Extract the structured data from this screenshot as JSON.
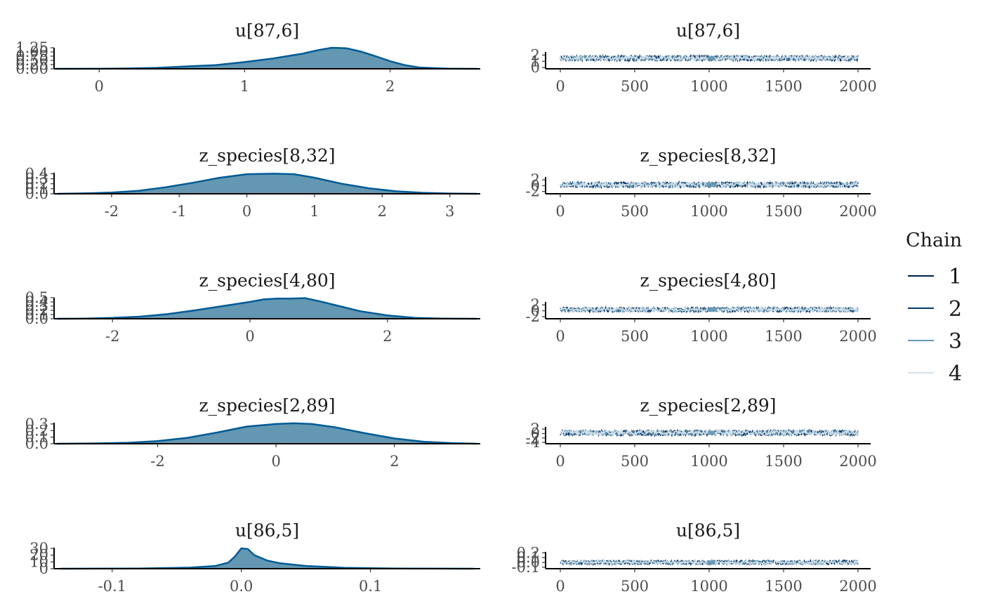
{
  "chart_data": [
    {
      "type": "area",
      "title": "u[87,6]",
      "parameter": "u[87,6]",
      "x": [
        -0.3,
        0.0,
        0.2,
        0.4,
        0.6,
        0.8,
        1.0,
        1.2,
        1.4,
        1.5,
        1.6,
        1.7,
        1.8,
        1.9,
        2.0,
        2.1,
        2.2,
        2.4,
        2.6
      ],
      "y": [
        0.0,
        0.005,
        0.02,
        0.06,
        0.14,
        0.22,
        0.4,
        0.62,
        0.9,
        1.1,
        1.25,
        1.22,
        1.02,
        0.75,
        0.45,
        0.22,
        0.08,
        0.01,
        0.0
      ],
      "xlim": [
        -0.31,
        2.62
      ],
      "ylim": [
        0,
        1.25
      ],
      "xticks": [
        0,
        1,
        2
      ],
      "xtick_labels": [
        "0",
        "1",
        "2"
      ],
      "yticks": [
        0,
        0.25,
        0.5,
        0.75,
        1.0,
        1.25
      ],
      "ytick_labels": [
        "0.00",
        "0.25",
        "0.50",
        "0.75",
        "1.00",
        "1.25"
      ],
      "fill_color": "#6497b1",
      "line_color": "#005b96"
    },
    {
      "type": "line",
      "title": "u[87,6]",
      "parameter": "u[87,6]",
      "iterations": [
        0,
        2000
      ],
      "trace_center": 1.5,
      "trace_spread": 0.45,
      "trace_highlight": [
        990,
        1040
      ],
      "xlim": [
        -80,
        2090
      ],
      "ylim": [
        -0.2,
        2.5
      ],
      "xticks": [
        0,
        500,
        1000,
        1500,
        2000
      ],
      "xtick_labels": [
        "0",
        "500",
        "1000",
        "1500",
        "2000"
      ],
      "yticks": [
        0,
        1,
        2
      ],
      "ytick_labels": [
        "0",
        "1",
        "2"
      ]
    },
    {
      "type": "area",
      "title": "z_species[8,32]",
      "parameter": "z_species[8,32]",
      "x": [
        -2.8,
        -2.4,
        -2.0,
        -1.6,
        -1.2,
        -0.8,
        -0.4,
        0.0,
        0.4,
        0.7,
        1.0,
        1.4,
        1.8,
        2.2,
        2.6,
        3.0,
        3.4
      ],
      "y": [
        0.0,
        0.008,
        0.025,
        0.06,
        0.13,
        0.22,
        0.32,
        0.39,
        0.4,
        0.39,
        0.32,
        0.2,
        0.11,
        0.05,
        0.02,
        0.005,
        0.0
      ],
      "xlim": [
        -2.85,
        3.45
      ],
      "ylim": [
        0,
        0.42
      ],
      "xticks": [
        -2,
        -1,
        0,
        1,
        2,
        3
      ],
      "xtick_labels": [
        "-2",
        "-1",
        "0",
        "1",
        "2",
        "3"
      ],
      "yticks": [
        0,
        0.1,
        0.2,
        0.3,
        0.4
      ],
      "ytick_labels": [
        "0.0",
        "0.1",
        "0.2",
        "0.3",
        "0.4"
      ],
      "fill_color": "#6497b1",
      "line_color": "#005b96"
    },
    {
      "type": "line",
      "title": "z_species[8,32]",
      "parameter": "z_species[8,32]",
      "iterations": [
        0,
        2000
      ],
      "trace_center": 0.3,
      "trace_spread": 1.0,
      "trace_highlight": [
        980,
        1050
      ],
      "xlim": [
        -80,
        2090
      ],
      "ylim": [
        -2.8,
        3.0
      ],
      "xticks": [
        0,
        500,
        1000,
        1500,
        2000
      ],
      "xtick_labels": [
        "0",
        "500",
        "1000",
        "1500",
        "2000"
      ],
      "yticks": [
        -2,
        0,
        2
      ],
      "ytick_labels": [
        "-2",
        "0",
        "2"
      ]
    },
    {
      "type": "area",
      "title": "z_species[4,80]",
      "parameter": "z_species[4,80]",
      "x": [
        -2.8,
        -2.4,
        -2.0,
        -1.6,
        -1.2,
        -0.8,
        -0.4,
        0.0,
        0.2,
        0.4,
        0.6,
        0.8,
        1.0,
        1.3,
        1.6,
        2.0,
        2.4,
        2.8,
        3.3
      ],
      "y": [
        0.0,
        0.005,
        0.02,
        0.05,
        0.11,
        0.2,
        0.3,
        0.4,
        0.46,
        0.48,
        0.48,
        0.49,
        0.42,
        0.3,
        0.18,
        0.08,
        0.02,
        0.005,
        0.0
      ],
      "xlim": [
        -2.85,
        3.35
      ],
      "ylim": [
        0,
        0.5
      ],
      "xticks": [
        -2,
        0,
        2
      ],
      "xtick_labels": [
        "-2",
        "0",
        "2"
      ],
      "yticks": [
        0,
        0.1,
        0.2,
        0.3,
        0.4,
        0.5
      ],
      "ytick_labels": [
        "0.0",
        "0.1",
        "0.2",
        "0.3",
        "0.4",
        "0.5"
      ],
      "fill_color": "#6497b1",
      "line_color": "#005b96"
    },
    {
      "type": "line",
      "title": "z_species[4,80]",
      "parameter": "z_species[4,80]",
      "iterations": [
        0,
        2000
      ],
      "trace_center": 0.4,
      "trace_spread": 0.85,
      "trace_highlight": [
        990,
        1050
      ],
      "xlim": [
        -80,
        2090
      ],
      "ylim": [
        -2.7,
        3.0
      ],
      "xticks": [
        0,
        500,
        1000,
        1500,
        2000
      ],
      "xtick_labels": [
        "0",
        "500",
        "1000",
        "1500",
        "2000"
      ],
      "yticks": [
        -2,
        0,
        2
      ],
      "ytick_labels": [
        "-2",
        "0",
        "2"
      ]
    },
    {
      "type": "area",
      "title": "z_species[2,89]",
      "parameter": "z_species[2,89]",
      "x": [
        -3.7,
        -3.0,
        -2.5,
        -2.0,
        -1.5,
        -1.0,
        -0.5,
        0.0,
        0.3,
        0.6,
        1.0,
        1.5,
        2.0,
        2.5,
        3.0,
        3.4
      ],
      "y": [
        0.0,
        0.005,
        0.015,
        0.04,
        0.09,
        0.17,
        0.26,
        0.3,
        0.31,
        0.3,
        0.25,
        0.16,
        0.08,
        0.03,
        0.008,
        0.0
      ],
      "xlim": [
        -3.75,
        3.45
      ],
      "ylim": [
        0,
        0.32
      ],
      "xticks": [
        -2,
        0,
        2
      ],
      "xtick_labels": [
        "-2",
        "0",
        "2"
      ],
      "yticks": [
        0,
        0.1,
        0.2,
        0.3
      ],
      "ytick_labels": [
        "0.0",
        "0.1",
        "0.2",
        "0.3"
      ],
      "fill_color": "#6497b1",
      "line_color": "#005b96"
    },
    {
      "type": "line",
      "title": "z_species[2,89]",
      "parameter": "z_species[2,89]",
      "iterations": [
        0,
        2000
      ],
      "trace_center": 0.3,
      "trace_spread": 1.3,
      "trace_highlight": [
        990,
        1040
      ],
      "xlim": [
        -80,
        2090
      ],
      "ylim": [
        -4.6,
        3.0
      ],
      "xticks": [
        0,
        500,
        1000,
        1500,
        2000
      ],
      "xtick_labels": [
        "0",
        "500",
        "1000",
        "1500",
        "2000"
      ],
      "yticks": [
        -4,
        -2,
        0,
        2
      ],
      "ytick_labels": [
        "-4",
        "-2",
        "0",
        "2"
      ]
    },
    {
      "type": "area",
      "title": "u[86,5]",
      "parameter": "u[86,5]",
      "x": [
        -0.14,
        -0.08,
        -0.04,
        -0.02,
        -0.01,
        -0.005,
        0.0,
        0.005,
        0.01,
        0.02,
        0.03,
        0.05,
        0.08,
        0.12,
        0.18
      ],
      "y": [
        0.0,
        0.3,
        1.5,
        4.0,
        9.0,
        18.0,
        30.0,
        29.0,
        20.0,
        12.0,
        8.0,
        4.0,
        1.2,
        0.3,
        0.0
      ],
      "xlim": [
        -0.145,
        0.185
      ],
      "ylim": [
        0,
        31
      ],
      "xticks": [
        -0.1,
        0.0,
        0.1
      ],
      "xtick_labels": [
        "-0.1",
        "0.0",
        "0.1"
      ],
      "yticks": [
        0,
        10,
        20,
        30
      ],
      "ytick_labels": [
        "0",
        "10",
        "20",
        "30"
      ],
      "fill_color": "#6497b1",
      "line_color": "#005b96"
    },
    {
      "type": "line",
      "title": "u[86,5]",
      "parameter": "u[86,5]",
      "iterations": [
        0,
        2000
      ],
      "trace_center": 0.0,
      "trace_spread": 0.045,
      "trace_highlight": [
        990,
        1040
      ],
      "xlim": [
        -80,
        2090
      ],
      "ylim": [
        -0.13,
        0.22
      ],
      "xticks": [
        0,
        500,
        1000,
        1500,
        2000
      ],
      "xtick_labels": [
        "0",
        "500",
        "1000",
        "1500",
        "2000"
      ],
      "yticks": [
        -0.1,
        0.0,
        0.1,
        0.2
      ],
      "ytick_labels": [
        "-0.1",
        "0.0",
        "0.1",
        "0.2"
      ]
    }
  ],
  "legend": {
    "title": "Chain",
    "placement": "right",
    "items": [
      {
        "label": "1",
        "color": "#011f4b"
      },
      {
        "label": "2",
        "color": "#03396c"
      },
      {
        "label": "3",
        "color": "#6497b1"
      },
      {
        "label": "4",
        "color": "#d1e1ec"
      }
    ]
  }
}
